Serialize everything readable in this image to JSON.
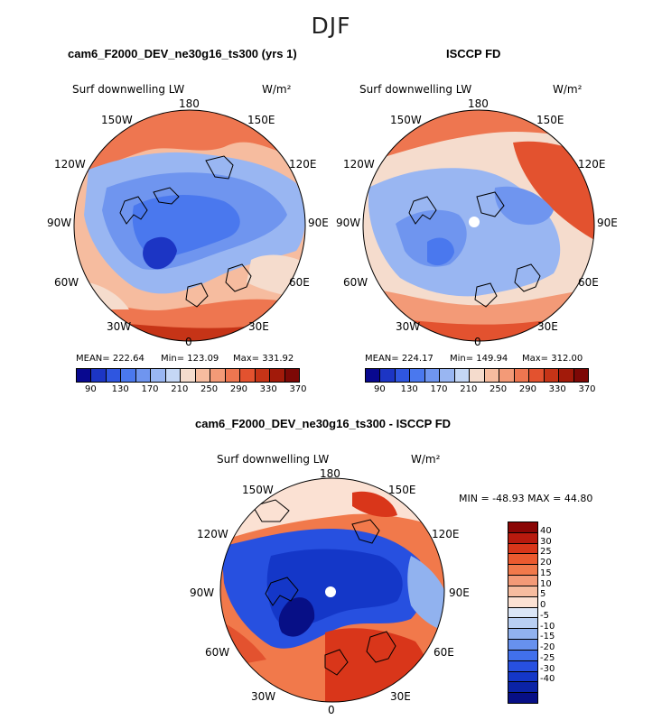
{
  "figure": {
    "title": "DJF"
  },
  "panels": [
    {
      "title": "cam6_F2000_DEV_ne30g16_ts300 (yrs 1)",
      "variable": "Surf downwelling LW",
      "units": "W/m²",
      "lon_labels": {
        "180": "180",
        "150W": "150W",
        "150E": "150E",
        "120W": "120W",
        "120E": "120E",
        "90W": "90W",
        "90E": "90E",
        "60W": "60W",
        "60E": "60E",
        "30W": "30W",
        "30E": "30E",
        "0": "0"
      },
      "stats": {
        "mean": "MEAN= 222.64",
        "min": "Min= 123.09",
        "max": "Max= 331.92"
      },
      "colorbar_ticks": [
        "90",
        "130",
        "170",
        "210",
        "250",
        "290",
        "330",
        "370"
      ]
    },
    {
      "title": "ISCCP FD",
      "variable": "Surf downwelling LW",
      "units": "W/m²",
      "lon_labels": {
        "180": "180",
        "150W": "150W",
        "150E": "150E",
        "120W": "120W",
        "120E": "120E",
        "90W": "90W",
        "90E": "90E",
        "60W": "60W",
        "60E": "60E",
        "30W": "30W",
        "30E": "30E",
        "0": "0"
      },
      "stats": {
        "mean": "MEAN= 224.17",
        "min": "Min= 149.94",
        "max": "Max= 312.00"
      },
      "colorbar_ticks": [
        "90",
        "130",
        "170",
        "210",
        "250",
        "290",
        "330",
        "370"
      ]
    },
    {
      "title": "cam6_F2000_DEV_ne30g16_ts300 - ISCCP FD",
      "variable": "Surf downwelling LW",
      "units": "W/m²",
      "lon_labels": {
        "180": "180",
        "150W": "150W",
        "150E": "150E",
        "120W": "120W",
        "120E": "120E",
        "90W": "90W",
        "90E": "90E",
        "60W": "60W",
        "60E": "60E",
        "30W": "30W",
        "30E": "30E",
        "0": "0"
      },
      "minmax": "MIN = -48.93 MAX =  44.80",
      "colorbar_ticks": [
        "40",
        "30",
        "25",
        "20",
        "15",
        "10",
        "5",
        "0",
        "-5",
        "-10",
        "-15",
        "-20",
        "-25",
        "-30",
        "-40"
      ]
    }
  ],
  "colors": {
    "abs_scale": [
      "#08088f",
      "#1c35c4",
      "#2f56e0",
      "#4a78ee",
      "#6f95ef",
      "#99b6f2",
      "#c5d7f5",
      "#f5dccd",
      "#f6bc9f",
      "#f39a77",
      "#ee7650",
      "#e3522f",
      "#c63417",
      "#a21a0a",
      "#7d0806"
    ],
    "diff_scale": [
      "#8a0605",
      "#b81a0e",
      "#d9361a",
      "#ec5a2f",
      "#f1794b",
      "#f39a77",
      "#f6bc9f",
      "#fbe1d3",
      "#dbe6f7",
      "#b9cff3",
      "#91b2ef",
      "#6791ee",
      "#4170ec",
      "#2750e0",
      "#1437c8",
      "#0b23a6",
      "#070f86"
    ]
  }
}
